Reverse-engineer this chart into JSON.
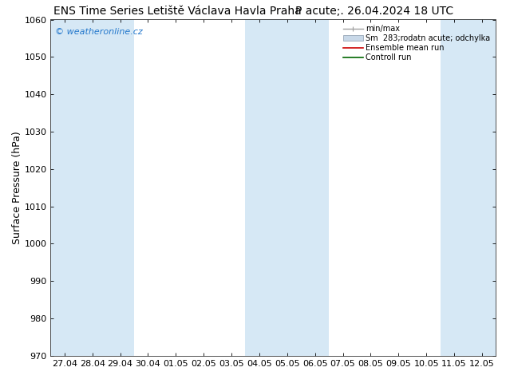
{
  "title_left": "ENS Time Series Letiště Václava Havla Praha",
  "title_right": "P acute;. 26.04.2024 18 UTC",
  "ylabel": "Surface Pressure (hPa)",
  "ylim": [
    970,
    1060
  ],
  "yticks": [
    970,
    980,
    990,
    1000,
    1010,
    1020,
    1030,
    1040,
    1050,
    1060
  ],
  "x_labels": [
    "27.04",
    "28.04",
    "29.04",
    "30.04",
    "01.05",
    "02.05",
    "03.05",
    "04.05",
    "05.05",
    "06.05",
    "07.05",
    "08.05",
    "09.05",
    "10.05",
    "11.05",
    "12.05"
  ],
  "shaded_bands_start": [
    0,
    1,
    2,
    7,
    8,
    9,
    14,
    15
  ],
  "band_color": "#d6e8f5",
  "watermark": "© weatheronline.cz",
  "bg_color": "#ffffff",
  "plot_bg_color": "#ffffff",
  "legend_minmax_color": "#a0a0a0",
  "legend_std_color": "#c8d8e8",
  "legend_ens_color": "#cc0000",
  "legend_ctrl_color": "#006600",
  "title_fontsize": 10,
  "tick_fontsize": 8,
  "ylabel_fontsize": 9,
  "watermark_color": "#2277cc"
}
